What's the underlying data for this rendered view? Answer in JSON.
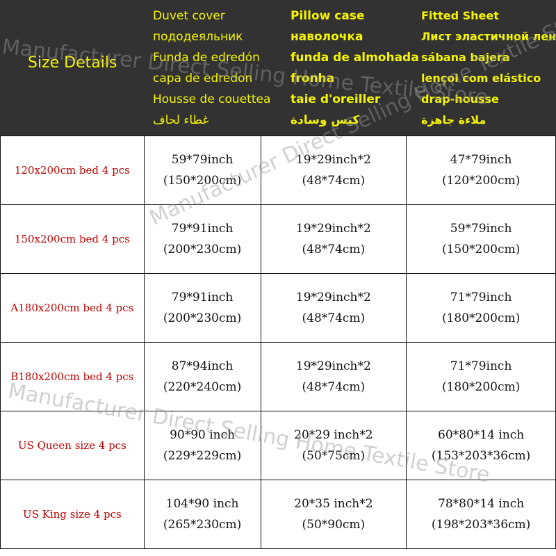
{
  "header": {
    "title": "Size Details",
    "columns": [
      {
        "lines": [
          "Duvet cover",
          "пододеяльник",
          "Funda de edredón",
          "capa de edredon",
          "Housse de couettea",
          "غطاء لحاف"
        ]
      },
      {
        "lines": [
          "Pillow case",
          "наволочка",
          "funda de almohada",
          "fronha",
          "taie d'oreiller",
          "كيس وسادة"
        ]
      },
      {
        "lines": [
          "Fitted Sheet",
          "Лист эластичной лент",
          "sábana bajera",
          "lençol com elástico",
          "drap-housse",
          "ملاءة جاهزة"
        ]
      }
    ]
  },
  "rows": [
    {
      "label": "120x200cm bed 4 pcs",
      "duvet": [
        "59*79inch",
        "(150*200cm)"
      ],
      "pillow": [
        "19*29inch*2",
        "(48*74cm)"
      ],
      "sheet": [
        "47*79inch",
        "(120*200cm)"
      ]
    },
    {
      "label": "150x200cm bed 4 pcs",
      "duvet": [
        "79*91inch",
        "(200*230cm)"
      ],
      "pillow": [
        "19*29inch*2",
        "(48*74cm)"
      ],
      "sheet": [
        "59*79inch",
        "(150*200cm)"
      ]
    },
    {
      "label": "A180x200cm bed 4 pcs",
      "duvet": [
        "79*91inch",
        "(200*230cm)"
      ],
      "pillow": [
        "19*29inch*2",
        "(48*74cm)"
      ],
      "sheet": [
        "71*79inch",
        "(180*200cm)"
      ]
    },
    {
      "label": "B180x200cm bed 4 pcs",
      "duvet": [
        "87*94inch",
        "(220*240cm)"
      ],
      "pillow": [
        "19*29inch*2",
        "(48*74cm)"
      ],
      "sheet": [
        "71*79inch",
        "(180*200cm)"
      ]
    },
    {
      "label": "US Queen size 4 pcs",
      "duvet": [
        "90*90 inch",
        "(229*229cm)"
      ],
      "pillow": [
        "20*29 inch*2",
        "(50*75cm)"
      ],
      "sheet": [
        "60*80*14 inch",
        "(153*203*36cm)"
      ]
    },
    {
      "label": "US King size 4 pcs",
      "duvet": [
        "104*90 inch",
        "(265*230cm)"
      ],
      "pillow": [
        "20*35 inch*2",
        "(50*90cm)"
      ],
      "sheet": [
        "78*80*14 inch",
        "(198*203*36cm)"
      ]
    }
  ],
  "watermark": "Manufacturer Direct Selling Home Textile Store",
  "colors": {
    "header_bg": "#323232",
    "header_text": "#f5f500",
    "label_text": "#c00000"
  }
}
